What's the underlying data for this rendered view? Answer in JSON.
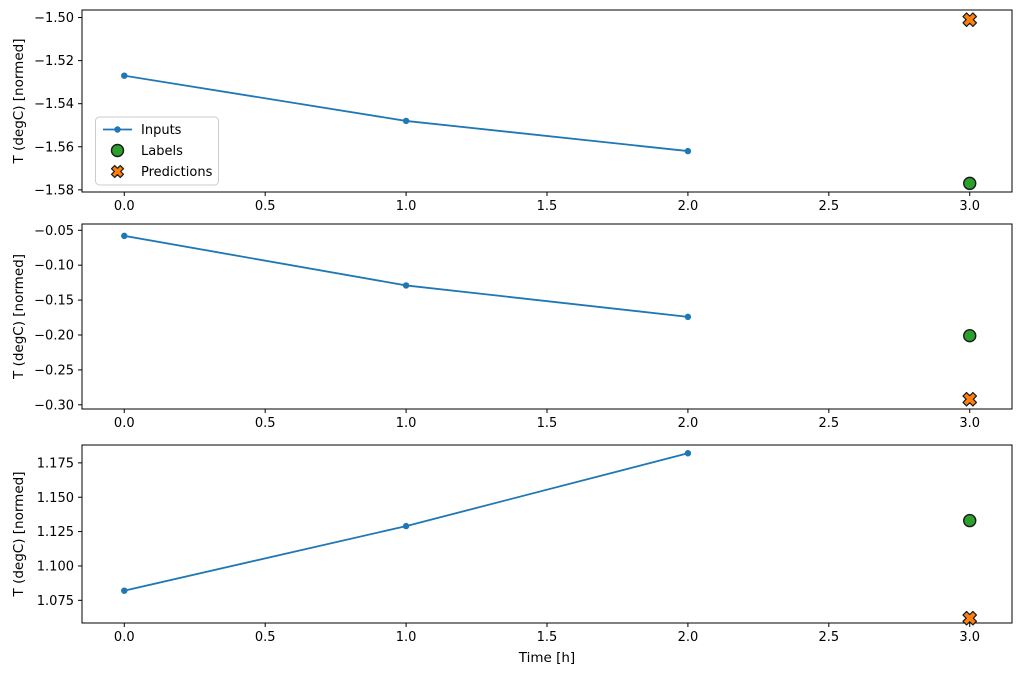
{
  "figure": {
    "xlabel": "Time [h]",
    "background_color": "#ffffff",
    "text_color": "#000000",
    "spine_color": "#000000"
  },
  "legend": {
    "location": "center left of first subplot",
    "border_color": "#cccccc",
    "background_color": "#ffffff",
    "entries": [
      {
        "label": "Inputs",
        "marker": "line-with-dot",
        "color": "#1f77b4",
        "edge_color": "#1f77b4"
      },
      {
        "label": "Labels",
        "marker": "circle",
        "color": "#2ca02c",
        "edge_color": "#1a1a1a"
      },
      {
        "label": "Predictions",
        "marker": "x-cross",
        "color": "#ff7f0e",
        "edge_color": "#1a1a1a"
      }
    ]
  },
  "chart_data": [
    {
      "type": "line",
      "subplot_index": 0,
      "title": "",
      "xlabel": "",
      "ylabel": "T (degC) [normed]",
      "xlim": [
        -0.15,
        3.15
      ],
      "ylim": [
        -1.581,
        -1.4965
      ],
      "x_ticks": [
        0.0,
        0.5,
        1.0,
        1.5,
        2.0,
        2.5,
        3.0
      ],
      "x_tick_labels": [
        "0.0",
        "0.5",
        "1.0",
        "1.5",
        "2.0",
        "2.5",
        "3.0"
      ],
      "y_ticks": [
        -1.5,
        -1.52,
        -1.54,
        -1.56,
        -1.58
      ],
      "y_tick_labels": [
        "−1.50",
        "−1.52",
        "−1.54",
        "−1.56",
        "−1.58"
      ],
      "grid": false,
      "show_legend": true,
      "series": [
        {
          "name": "Inputs",
          "kind": "line",
          "color": "#1f77b4",
          "x": [
            0.0,
            1.0,
            2.0
          ],
          "y": [
            -1.527,
            -1.548,
            -1.562
          ]
        },
        {
          "name": "Labels",
          "kind": "scatter_circle",
          "color": "#2ca02c",
          "x": [
            3.0
          ],
          "y": [
            -1.577
          ]
        },
        {
          "name": "Predictions",
          "kind": "scatter_x",
          "color": "#ff7f0e",
          "x": [
            3.0
          ],
          "y": [
            -1.501
          ]
        }
      ]
    },
    {
      "type": "line",
      "subplot_index": 1,
      "title": "",
      "xlabel": "",
      "ylabel": "T (degC) [normed]",
      "xlim": [
        -0.15,
        3.15
      ],
      "ylim": [
        -0.306,
        -0.041
      ],
      "x_ticks": [
        0.0,
        0.5,
        1.0,
        1.5,
        2.0,
        2.5,
        3.0
      ],
      "x_tick_labels": [
        "0.0",
        "0.5",
        "1.0",
        "1.5",
        "2.0",
        "2.5",
        "3.0"
      ],
      "y_ticks": [
        -0.05,
        -0.1,
        -0.15,
        -0.2,
        -0.25,
        -0.3
      ],
      "y_tick_labels": [
        "−0.05",
        "−0.10",
        "−0.15",
        "−0.20",
        "−0.25",
        "−0.30"
      ],
      "grid": false,
      "show_legend": false,
      "series": [
        {
          "name": "Inputs",
          "kind": "line",
          "color": "#1f77b4",
          "x": [
            0.0,
            1.0,
            2.0
          ],
          "y": [
            -0.058,
            -0.129,
            -0.174
          ]
        },
        {
          "name": "Labels",
          "kind": "scatter_circle",
          "color": "#2ca02c",
          "x": [
            3.0
          ],
          "y": [
            -0.201
          ]
        },
        {
          "name": "Predictions",
          "kind": "scatter_x",
          "color": "#ff7f0e",
          "x": [
            3.0
          ],
          "y": [
            -0.292
          ]
        }
      ]
    },
    {
      "type": "line",
      "subplot_index": 2,
      "title": "",
      "xlabel": "Time [h]",
      "ylabel": "T (degC) [normed]",
      "xlim": [
        -0.15,
        3.15
      ],
      "ylim": [
        1.0585,
        1.188
      ],
      "x_ticks": [
        0.0,
        0.5,
        1.0,
        1.5,
        2.0,
        2.5,
        3.0
      ],
      "x_tick_labels": [
        "0.0",
        "0.5",
        "1.0",
        "1.5",
        "2.0",
        "2.5",
        "3.0"
      ],
      "y_ticks": [
        1.075,
        1.1,
        1.125,
        1.15,
        1.175
      ],
      "y_tick_labels": [
        "1.075",
        "1.100",
        "1.125",
        "1.150",
        "1.175"
      ],
      "grid": false,
      "show_legend": false,
      "series": [
        {
          "name": "Inputs",
          "kind": "line",
          "color": "#1f77b4",
          "x": [
            0.0,
            1.0,
            2.0
          ],
          "y": [
            1.082,
            1.129,
            1.182
          ]
        },
        {
          "name": "Labels",
          "kind": "scatter_circle",
          "color": "#2ca02c",
          "x": [
            3.0
          ],
          "y": [
            1.133
          ]
        },
        {
          "name": "Predictions",
          "kind": "scatter_x",
          "color": "#ff7f0e",
          "x": [
            3.0
          ],
          "y": [
            1.062
          ]
        }
      ]
    }
  ]
}
